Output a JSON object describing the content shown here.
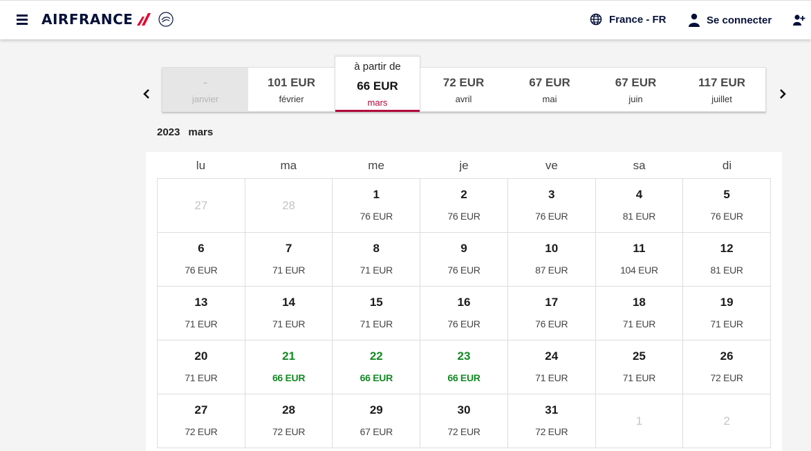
{
  "header": {
    "brand": "AIRFRANCE",
    "language": "France - FR",
    "login_label": "Se connecter",
    "icons": [
      "menu-icon",
      "globe-icon",
      "user-icon",
      "add-user-icon"
    ]
  },
  "months": [
    {
      "price": "-",
      "month": "janvier",
      "state": "disabled"
    },
    {
      "price": "101 EUR",
      "month": "février",
      "state": "normal"
    },
    {
      "prefix": "à partir de",
      "price": "66 EUR",
      "month": "mars",
      "state": "active"
    },
    {
      "price": "72 EUR",
      "month": "avril",
      "state": "normal"
    },
    {
      "price": "67 EUR",
      "month": "mai",
      "state": "normal"
    },
    {
      "price": "67 EUR",
      "month": "juin",
      "state": "normal"
    },
    {
      "price": "117 EUR",
      "month": "juillet",
      "state": "normal"
    }
  ],
  "selection": {
    "year": "2023",
    "month": "mars"
  },
  "weekdays": [
    "lu",
    "ma",
    "me",
    "je",
    "ve",
    "sa",
    "di"
  ],
  "days": [
    {
      "day": "27",
      "price": "",
      "out": true
    },
    {
      "day": "28",
      "price": "",
      "out": true
    },
    {
      "day": "1",
      "price": "76 EUR"
    },
    {
      "day": "2",
      "price": "76 EUR"
    },
    {
      "day": "3",
      "price": "76 EUR"
    },
    {
      "day": "4",
      "price": "81 EUR"
    },
    {
      "day": "5",
      "price": "76 EUR"
    },
    {
      "day": "6",
      "price": "76 EUR"
    },
    {
      "day": "7",
      "price": "71 EUR"
    },
    {
      "day": "8",
      "price": "71 EUR"
    },
    {
      "day": "9",
      "price": "76 EUR"
    },
    {
      "day": "10",
      "price": "87 EUR"
    },
    {
      "day": "11",
      "price": "104 EUR"
    },
    {
      "day": "12",
      "price": "81 EUR"
    },
    {
      "day": "13",
      "price": "71 EUR"
    },
    {
      "day": "14",
      "price": "71 EUR"
    },
    {
      "day": "15",
      "price": "71 EUR"
    },
    {
      "day": "16",
      "price": "76 EUR"
    },
    {
      "day": "17",
      "price": "76 EUR"
    },
    {
      "day": "18",
      "price": "71 EUR"
    },
    {
      "day": "19",
      "price": "71 EUR"
    },
    {
      "day": "20",
      "price": "71 EUR"
    },
    {
      "day": "21",
      "price": "66 EUR",
      "best": true
    },
    {
      "day": "22",
      "price": "66 EUR",
      "best": true
    },
    {
      "day": "23",
      "price": "66 EUR",
      "best": true
    },
    {
      "day": "24",
      "price": "71 EUR"
    },
    {
      "day": "25",
      "price": "71 EUR"
    },
    {
      "day": "26",
      "price": "72 EUR"
    },
    {
      "day": "27",
      "price": "72 EUR"
    },
    {
      "day": "28",
      "price": "72 EUR"
    },
    {
      "day": "29",
      "price": "67 EUR"
    },
    {
      "day": "30",
      "price": "72 EUR"
    },
    {
      "day": "31",
      "price": "72 EUR"
    },
    {
      "day": "1",
      "price": "",
      "out": true
    },
    {
      "day": "2",
      "price": "",
      "out": true
    }
  ],
  "colors": {
    "navy": "#051039",
    "accent": "#b1063a",
    "best_price": "#138a24"
  }
}
